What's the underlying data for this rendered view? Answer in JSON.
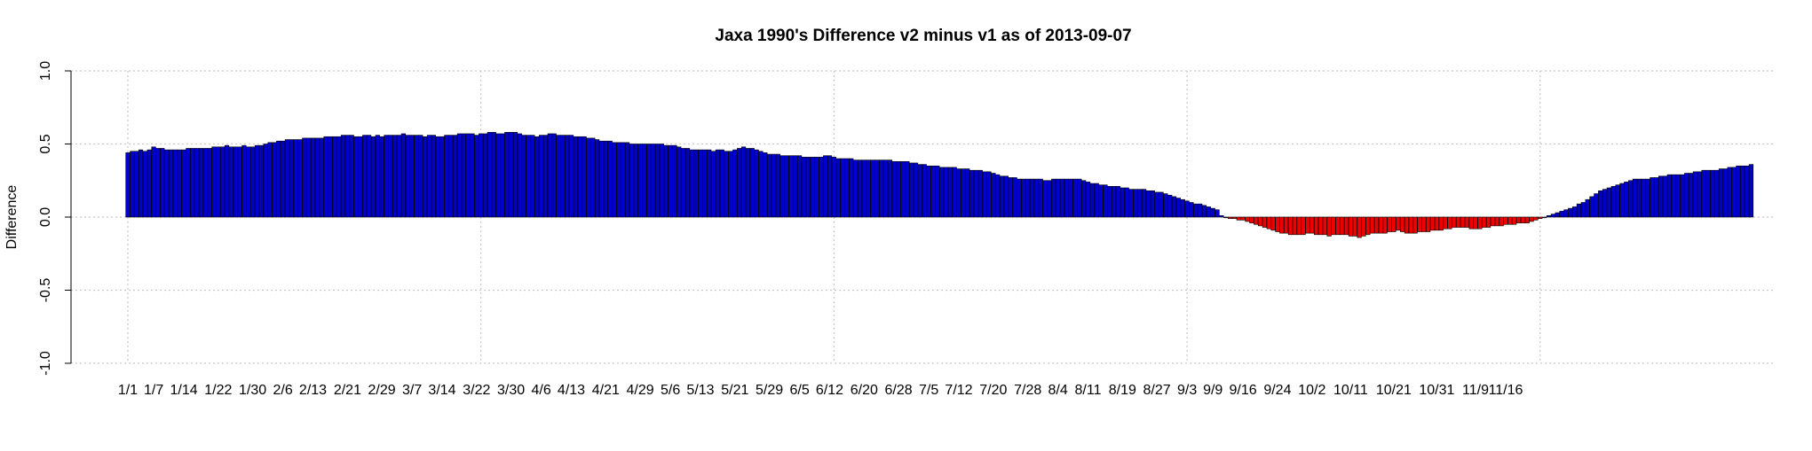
{
  "chart_data": {
    "type": "bar",
    "title": "Jaxa 1990's Difference v2 minus v1 as of 2013-09-07",
    "xlabel": "",
    "ylabel": "Difference",
    "ylim": [
      -1.0,
      1.0
    ],
    "yticks": [
      "-1.0",
      "-0.5",
      "0.0",
      "0.5",
      "1.0"
    ],
    "grid": true,
    "colors": {
      "positive": "#0000cc",
      "negative": "#ee0000",
      "grid": "#c8c8c8"
    },
    "vertical_gridlines_at_day": [
      0,
      82,
      164,
      246,
      328
    ],
    "x_tick_labels": [
      {
        "day": 0,
        "label": "1/1"
      },
      {
        "day": 6,
        "label": "1/7"
      },
      {
        "day": 13,
        "label": "1/14"
      },
      {
        "day": 21,
        "label": "1/22"
      },
      {
        "day": 29,
        "label": "1/30"
      },
      {
        "day": 36,
        "label": "2/6"
      },
      {
        "day": 43,
        "label": "2/13"
      },
      {
        "day": 51,
        "label": "2/21"
      },
      {
        "day": 59,
        "label": "2/29"
      },
      {
        "day": 66,
        "label": "3/7"
      },
      {
        "day": 73,
        "label": "3/14"
      },
      {
        "day": 81,
        "label": "3/22"
      },
      {
        "day": 89,
        "label": "3/30"
      },
      {
        "day": 96,
        "label": "4/6"
      },
      {
        "day": 103,
        "label": "4/13"
      },
      {
        "day": 111,
        "label": "4/21"
      },
      {
        "day": 119,
        "label": "4/29"
      },
      {
        "day": 126,
        "label": "5/6"
      },
      {
        "day": 133,
        "label": "5/13"
      },
      {
        "day": 141,
        "label": "5/21"
      },
      {
        "day": 149,
        "label": "5/29"
      },
      {
        "day": 156,
        "label": "6/5"
      },
      {
        "day": 163,
        "label": "6/12"
      },
      {
        "day": 171,
        "label": "6/20"
      },
      {
        "day": 179,
        "label": "6/28"
      },
      {
        "day": 186,
        "label": "7/5"
      },
      {
        "day": 193,
        "label": "7/12"
      },
      {
        "day": 201,
        "label": "7/20"
      },
      {
        "day": 209,
        "label": "7/28"
      },
      {
        "day": 216,
        "label": "8/4"
      },
      {
        "day": 223,
        "label": "8/11"
      },
      {
        "day": 231,
        "label": "8/19"
      },
      {
        "day": 239,
        "label": "8/27"
      },
      {
        "day": 246,
        "label": "9/3"
      },
      {
        "day": 252,
        "label": "9/9"
      },
      {
        "day": 259,
        "label": "9/16"
      },
      {
        "day": 267,
        "label": "9/24"
      },
      {
        "day": 275,
        "label": "10/2"
      },
      {
        "day": 284,
        "label": "10/11"
      },
      {
        "day": 294,
        "label": "10/21"
      },
      {
        "day": 304,
        "label": "10/31"
      },
      {
        "day": 313,
        "label": "11/9"
      },
      {
        "day": 320,
        "label": "11/16"
      }
    ],
    "series": [
      {
        "name": "Difference",
        "start_day": 0,
        "values": [
          0.44,
          0.45,
          0.45,
          0.46,
          0.45,
          0.46,
          0.48,
          0.47,
          0.47,
          0.46,
          0.46,
          0.46,
          0.46,
          0.46,
          0.47,
          0.47,
          0.47,
          0.47,
          0.47,
          0.47,
          0.48,
          0.48,
          0.48,
          0.49,
          0.48,
          0.48,
          0.48,
          0.49,
          0.48,
          0.48,
          0.49,
          0.49,
          0.5,
          0.51,
          0.51,
          0.52,
          0.52,
          0.53,
          0.53,
          0.53,
          0.53,
          0.54,
          0.54,
          0.54,
          0.54,
          0.54,
          0.55,
          0.55,
          0.55,
          0.55,
          0.56,
          0.56,
          0.56,
          0.55,
          0.55,
          0.56,
          0.56,
          0.55,
          0.56,
          0.55,
          0.56,
          0.56,
          0.56,
          0.56,
          0.57,
          0.56,
          0.56,
          0.56,
          0.56,
          0.55,
          0.56,
          0.56,
          0.55,
          0.55,
          0.56,
          0.56,
          0.56,
          0.57,
          0.57,
          0.57,
          0.57,
          0.56,
          0.57,
          0.57,
          0.58,
          0.58,
          0.57,
          0.57,
          0.58,
          0.58,
          0.58,
          0.57,
          0.56,
          0.56,
          0.56,
          0.55,
          0.56,
          0.56,
          0.57,
          0.57,
          0.56,
          0.56,
          0.56,
          0.56,
          0.55,
          0.55,
          0.55,
          0.54,
          0.54,
          0.53,
          0.52,
          0.52,
          0.52,
          0.51,
          0.51,
          0.51,
          0.51,
          0.5,
          0.5,
          0.5,
          0.5,
          0.5,
          0.5,
          0.5,
          0.5,
          0.49,
          0.49,
          0.49,
          0.48,
          0.47,
          0.47,
          0.46,
          0.46,
          0.46,
          0.46,
          0.46,
          0.45,
          0.46,
          0.46,
          0.45,
          0.45,
          0.46,
          0.47,
          0.48,
          0.47,
          0.47,
          0.46,
          0.45,
          0.44,
          0.43,
          0.43,
          0.43,
          0.42,
          0.42,
          0.42,
          0.42,
          0.42,
          0.41,
          0.41,
          0.41,
          0.41,
          0.41,
          0.42,
          0.42,
          0.41,
          0.4,
          0.4,
          0.4,
          0.4,
          0.39,
          0.39,
          0.39,
          0.39,
          0.39,
          0.39,
          0.39,
          0.39,
          0.39,
          0.38,
          0.38,
          0.38,
          0.38,
          0.37,
          0.37,
          0.36,
          0.36,
          0.35,
          0.35,
          0.35,
          0.34,
          0.34,
          0.34,
          0.34,
          0.33,
          0.33,
          0.33,
          0.32,
          0.32,
          0.32,
          0.31,
          0.31,
          0.3,
          0.29,
          0.28,
          0.28,
          0.27,
          0.27,
          0.26,
          0.26,
          0.26,
          0.26,
          0.26,
          0.26,
          0.25,
          0.25,
          0.26,
          0.26,
          0.26,
          0.26,
          0.26,
          0.26,
          0.26,
          0.25,
          0.24,
          0.23,
          0.23,
          0.22,
          0.22,
          0.21,
          0.21,
          0.21,
          0.2,
          0.2,
          0.19,
          0.19,
          0.19,
          0.19,
          0.18,
          0.18,
          0.17,
          0.17,
          0.16,
          0.15,
          0.14,
          0.13,
          0.12,
          0.11,
          0.1,
          0.09,
          0.09,
          0.08,
          0.07,
          0.06,
          0.05,
          0.01,
          0.0,
          -0.01,
          -0.01,
          -0.02,
          -0.02,
          -0.03,
          -0.04,
          -0.05,
          -0.06,
          -0.07,
          -0.08,
          -0.09,
          -0.1,
          -0.11,
          -0.11,
          -0.12,
          -0.12,
          -0.12,
          -0.12,
          -0.11,
          -0.11,
          -0.12,
          -0.12,
          -0.12,
          -0.13,
          -0.12,
          -0.12,
          -0.12,
          -0.12,
          -0.13,
          -0.13,
          -0.14,
          -0.13,
          -0.12,
          -0.11,
          -0.11,
          -0.11,
          -0.11,
          -0.1,
          -0.1,
          -0.09,
          -0.1,
          -0.11,
          -0.11,
          -0.11,
          -0.1,
          -0.1,
          -0.1,
          -0.09,
          -0.09,
          -0.09,
          -0.08,
          -0.08,
          -0.07,
          -0.07,
          -0.07,
          -0.07,
          -0.08,
          -0.08,
          -0.08,
          -0.07,
          -0.07,
          -0.06,
          -0.06,
          -0.06,
          -0.05,
          -0.05,
          -0.05,
          -0.04,
          -0.04,
          -0.04,
          -0.03,
          -0.02,
          -0.01,
          0.0,
          0.01,
          0.02,
          0.03,
          0.04,
          0.05,
          0.06,
          0.07,
          0.09,
          0.1,
          0.12,
          0.14,
          0.16,
          0.18,
          0.19,
          0.2,
          0.21,
          0.22,
          0.23,
          0.24,
          0.25,
          0.26,
          0.26,
          0.26,
          0.26,
          0.27,
          0.27,
          0.28,
          0.28,
          0.29,
          0.29,
          0.29,
          0.29,
          0.3,
          0.3,
          0.31,
          0.31,
          0.32,
          0.32,
          0.32,
          0.32,
          0.33,
          0.33,
          0.34,
          0.34,
          0.35,
          0.35,
          0.35,
          0.36
        ]
      }
    ]
  }
}
